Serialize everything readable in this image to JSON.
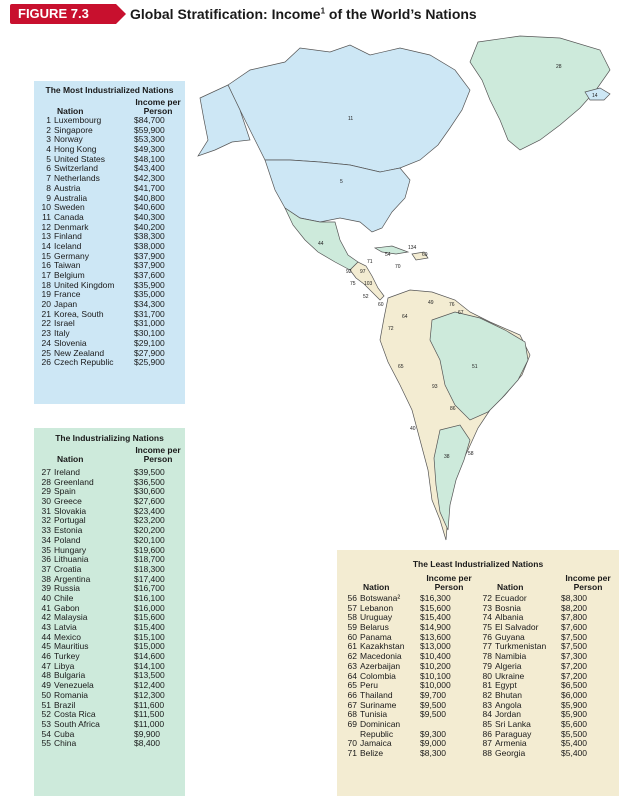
{
  "header": {
    "figure_label": "FIGURE 7.3",
    "title": "Global Stratification: Income",
    "title_sup": "1",
    "title_suffix": " of the World’s Nations"
  },
  "colors": {
    "most": "#cde7f5",
    "industrializing": "#cdeadb",
    "least": "#f3ecd2",
    "tab": "#c8102e"
  },
  "map": {
    "labels": [
      "28",
      "14",
      "11",
      "5",
      "44",
      "54",
      "134",
      "69",
      "71",
      "70",
      "92",
      "97",
      "75",
      "103",
      "52",
      "60",
      "64",
      "49",
      "76",
      "67",
      "72",
      "51",
      "65",
      "93",
      "86",
      "40",
      "58",
      "38"
    ]
  },
  "most": {
    "title": "The Most Industrialized Nations",
    "col_nation": "Nation",
    "col_income": "Income per Person",
    "rows": [
      {
        "n": "1",
        "name": "Luxembourg",
        "inc": "$84,700"
      },
      {
        "n": "2",
        "name": "Singapore",
        "inc": "$59,900"
      },
      {
        "n": "3",
        "name": "Norway",
        "inc": "$53,300"
      },
      {
        "n": "4",
        "name": "Hong Kong",
        "inc": "$49,300"
      },
      {
        "n": "5",
        "name": "United States",
        "inc": "$48,100"
      },
      {
        "n": "6",
        "name": "Switzerland",
        "inc": "$43,400"
      },
      {
        "n": "7",
        "name": "Netherlands",
        "inc": "$42,300"
      },
      {
        "n": "8",
        "name": "Austria",
        "inc": "$41,700"
      },
      {
        "n": "9",
        "name": "Australia",
        "inc": "$40,800"
      },
      {
        "n": "10",
        "name": "Sweden",
        "inc": "$40,600"
      },
      {
        "n": "11",
        "name": "Canada",
        "inc": "$40,300"
      },
      {
        "n": "12",
        "name": "Denmark",
        "inc": "$40,200"
      },
      {
        "n": "13",
        "name": "Finland",
        "inc": "$38,300"
      },
      {
        "n": "14",
        "name": "Iceland",
        "inc": "$38,000"
      },
      {
        "n": "15",
        "name": "Germany",
        "inc": "$37,900"
      },
      {
        "n": "16",
        "name": "Taiwan",
        "inc": "$37,900"
      },
      {
        "n": "17",
        "name": "Belgium",
        "inc": "$37,600"
      },
      {
        "n": "18",
        "name": "United Kingdom",
        "inc": "$35,900"
      },
      {
        "n": "19",
        "name": "France",
        "inc": "$35,000"
      },
      {
        "n": "20",
        "name": "Japan",
        "inc": "$34,300"
      },
      {
        "n": "21",
        "name": "Korea, South",
        "inc": "$31,700"
      },
      {
        "n": "22",
        "name": "Israel",
        "inc": "$31,000"
      },
      {
        "n": "23",
        "name": "Italy",
        "inc": "$30,100"
      },
      {
        "n": "24",
        "name": "Slovenia",
        "inc": "$29,100"
      },
      {
        "n": "25",
        "name": "New Zealand",
        "inc": "$27,900"
      },
      {
        "n": "26",
        "name": "Czech Republic",
        "inc": "$25,900"
      }
    ]
  },
  "industrializing": {
    "title": "The Industrializing Nations",
    "col_nation": "Nation",
    "col_income": "Income per Person",
    "rows": [
      {
        "n": "27",
        "name": "Ireland",
        "inc": "$39,500"
      },
      {
        "n": "28",
        "name": "Greenland",
        "inc": "$36,500"
      },
      {
        "n": "29",
        "name": "Spain",
        "inc": "$30,600"
      },
      {
        "n": "30",
        "name": "Greece",
        "inc": "$27,600"
      },
      {
        "n": "31",
        "name": "Slovakia",
        "inc": "$23,400"
      },
      {
        "n": "32",
        "name": "Portugal",
        "inc": "$23,200"
      },
      {
        "n": "33",
        "name": "Estonia",
        "inc": "$20,200"
      },
      {
        "n": "34",
        "name": "Poland",
        "inc": "$20,100"
      },
      {
        "n": "35",
        "name": "Hungary",
        "inc": "$19,600"
      },
      {
        "n": "36",
        "name": "Lithuania",
        "inc": "$18,700"
      },
      {
        "n": "37",
        "name": "Croatia",
        "inc": "$18,300"
      },
      {
        "n": "38",
        "name": "Argentina",
        "inc": "$17,400"
      },
      {
        "n": "39",
        "name": "Russia",
        "inc": "$16,700"
      },
      {
        "n": "40",
        "name": "Chile",
        "inc": "$16,100"
      },
      {
        "n": "41",
        "name": "Gabon",
        "inc": "$16,000"
      },
      {
        "n": "42",
        "name": "Malaysia",
        "inc": "$15,600"
      },
      {
        "n": "43",
        "name": "Latvia",
        "inc": "$15,400"
      },
      {
        "n": "44",
        "name": "Mexico",
        "inc": "$15,100"
      },
      {
        "n": "45",
        "name": "Mauritius",
        "inc": "$15,000"
      },
      {
        "n": "46",
        "name": "Turkey",
        "inc": "$14,600"
      },
      {
        "n": "47",
        "name": "Libya",
        "inc": "$14,100"
      },
      {
        "n": "48",
        "name": "Bulgaria",
        "inc": "$13,500"
      },
      {
        "n": "49",
        "name": "Venezuela",
        "inc": "$12,400"
      },
      {
        "n": "50",
        "name": "Romania",
        "inc": "$12,300"
      },
      {
        "n": "51",
        "name": "Brazil",
        "inc": "$11,600"
      },
      {
        "n": "52",
        "name": "Costa Rica",
        "inc": "$11,500"
      },
      {
        "n": "53",
        "name": "South Africa",
        "inc": "$11,000"
      },
      {
        "n": "54",
        "name": "Cuba",
        "inc": "$9,900"
      },
      {
        "n": "55",
        "name": "China",
        "inc": "$8,400"
      }
    ]
  },
  "least": {
    "title": "The Least Industrialized Nations",
    "col_nation": "Nation",
    "col_income": "Income per Person",
    "left": [
      {
        "n": "56",
        "name": "Botswana²",
        "inc": "$16,300"
      },
      {
        "n": "57",
        "name": "Lebanon",
        "inc": "$15,600"
      },
      {
        "n": "58",
        "name": "Uruguay",
        "inc": "$15,400"
      },
      {
        "n": "59",
        "name": "Belarus",
        "inc": "$14,900"
      },
      {
        "n": "60",
        "name": "Panama",
        "inc": "$13,600"
      },
      {
        "n": "61",
        "name": "Kazakhstan",
        "inc": "$13,000"
      },
      {
        "n": "62",
        "name": "Macedonia",
        "inc": "$10,400"
      },
      {
        "n": "63",
        "name": "Azerbaijan",
        "inc": "$10,200"
      },
      {
        "n": "64",
        "name": "Colombia",
        "inc": "$10,100"
      },
      {
        "n": "65",
        "name": "Peru",
        "inc": "$10,000"
      },
      {
        "n": "66",
        "name": "Thailand",
        "inc": "$9,700"
      },
      {
        "n": "67",
        "name": "Suriname",
        "inc": "$9,500"
      },
      {
        "n": "68",
        "name": "Tunisia",
        "inc": "$9,500"
      },
      {
        "n": "69",
        "name": "Dominican",
        "inc": ""
      },
      {
        "n": "",
        "name": "Republic",
        "inc": "$9,300"
      },
      {
        "n": "70",
        "name": "Jamaica",
        "inc": "$9,000"
      },
      {
        "n": "71",
        "name": "Belize",
        "inc": "$8,300"
      }
    ],
    "right": [
      {
        "n": "72",
        "name": "Ecuador",
        "inc": "$8,300"
      },
      {
        "n": "73",
        "name": "Bosnia",
        "inc": "$8,200"
      },
      {
        "n": "74",
        "name": "Albania",
        "inc": "$7,800"
      },
      {
        "n": "75",
        "name": "El Salvador",
        "inc": "$7,600"
      },
      {
        "n": "76",
        "name": "Guyana",
        "inc": "$7,500"
      },
      {
        "n": "77",
        "name": "Turkmenistan",
        "inc": "$7,500"
      },
      {
        "n": "78",
        "name": "Namibia",
        "inc": "$7,300"
      },
      {
        "n": "79",
        "name": "Algeria",
        "inc": "$7,200"
      },
      {
        "n": "80",
        "name": "Ukraine",
        "inc": "$7,200"
      },
      {
        "n": "81",
        "name": "Egypt",
        "inc": "$6,500"
      },
      {
        "n": "82",
        "name": "Bhutan",
        "inc": "$6,000"
      },
      {
        "n": "83",
        "name": "Angola",
        "inc": "$5,900"
      },
      {
        "n": "84",
        "name": "Jordan",
        "inc": "$5,900"
      },
      {
        "n": "85",
        "name": "Sri Lanka",
        "inc": "$5,600"
      },
      {
        "n": "86",
        "name": "Paraguay",
        "inc": "$5,500"
      },
      {
        "n": "87",
        "name": "Armenia",
        "inc": "$5,400"
      },
      {
        "n": "88",
        "name": "Georgia",
        "inc": "$5,400"
      }
    ]
  }
}
